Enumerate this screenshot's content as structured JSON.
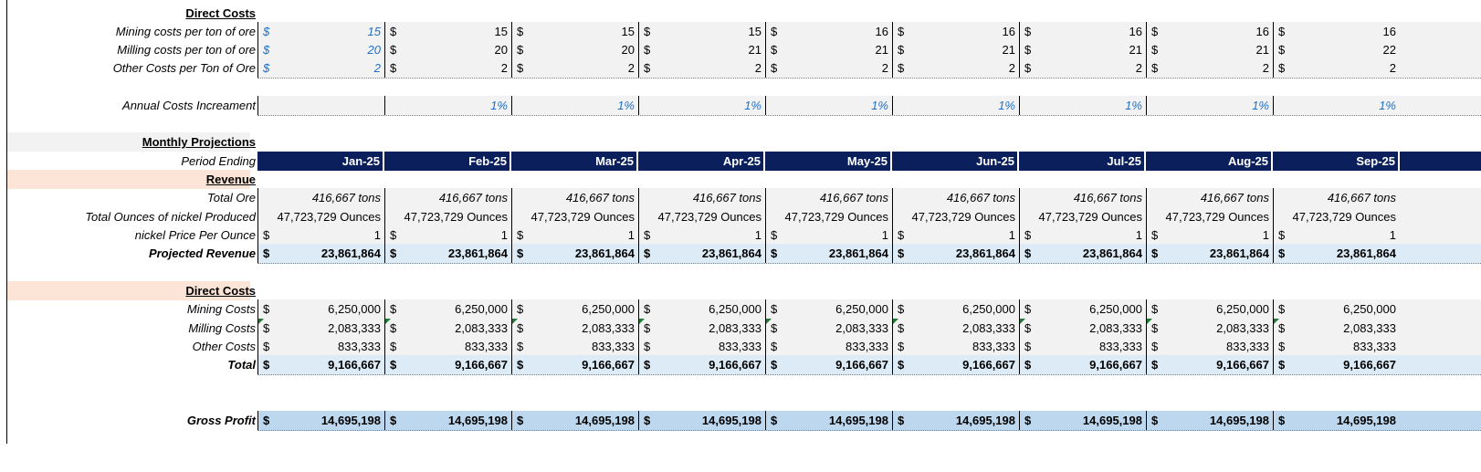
{
  "sheet": {
    "columns": 9,
    "section1": {
      "header": "Direct Costs",
      "rows": [
        {
          "label": "Mining costs per ton of ore",
          "values": [
            "15",
            "15",
            "15",
            "15",
            "16",
            "16",
            "16",
            "16",
            "16"
          ]
        },
        {
          "label": "Milling costs per ton of ore",
          "values": [
            "20",
            "20",
            "20",
            "21",
            "21",
            "21",
            "21",
            "21",
            "22"
          ]
        },
        {
          "label": "Other Costs per Ton of Ore",
          "values": [
            "2",
            "2",
            "2",
            "2",
            "2",
            "2",
            "2",
            "2",
            "2"
          ]
        }
      ]
    },
    "annual": {
      "label": "Annual Costs Increament",
      "values": [
        "",
        "1%",
        "1%",
        "1%",
        "1%",
        "1%",
        "1%",
        "1%",
        "1%"
      ]
    },
    "monthly_header": "Monthly Projections",
    "period_label": "Period Ending",
    "periods": [
      "Jan-25",
      "Feb-25",
      "Mar-25",
      "Apr-25",
      "May-25",
      "Jun-25",
      "Jul-25",
      "Aug-25",
      "Sep-25"
    ],
    "revenue": {
      "header": "Revenue",
      "total_ore": {
        "label": "Total Ore",
        "value": "416,667 tons"
      },
      "ounces": {
        "label": "Total Ounces of nickel Produced",
        "value": "47,723,729 Ounces"
      },
      "price": {
        "label": "nickel Price Per Ounce",
        "value": "1"
      },
      "projected": {
        "label": "Projected Revenue",
        "value": "23,861,864"
      }
    },
    "direct": {
      "header": "Direct Costs",
      "mining": {
        "label": "Mining Costs",
        "value": "6,250,000"
      },
      "milling": {
        "label": "Milling Costs",
        "value": "2,083,333"
      },
      "other": {
        "label": "Other Costs",
        "value": "833,333"
      },
      "total": {
        "label": "Total",
        "value": "9,166,667"
      }
    },
    "gross": {
      "label": "Gross Profit",
      "value": "14,695,198"
    },
    "currency": "$"
  },
  "colors": {
    "header_navy": "#0a1f5c",
    "input_blue": "#1f6fc6",
    "revenue_band": "#fce4d6",
    "total_band": "#ddebf7",
    "gross_band": "#bdd7ee"
  }
}
